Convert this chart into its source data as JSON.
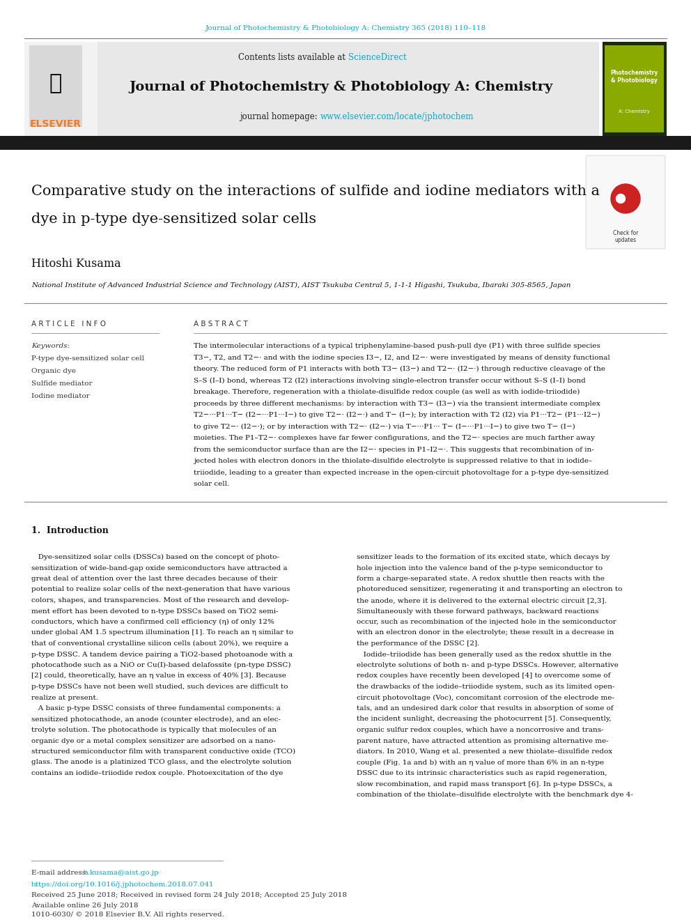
{
  "page_width": 9.92,
  "page_height": 13.23,
  "bg_color": "#ffffff",
  "top_journal_line": "Journal of Photochemistry & Photobiology A: Chemistry 365 (2018) 110–118",
  "top_journal_color": "#00aacc",
  "contents_line": "Contents lists available at ",
  "sciencedirect_text": "ScienceDirect",
  "sciencedirect_color": "#00aacc",
  "journal_title": "Journal of Photochemistry & Photobiology A: Chemistry",
  "journal_homepage_label": "journal homepage: ",
  "journal_homepage_url": "www.elsevier.com/locate/jphotochem",
  "journal_homepage_color": "#00aacc",
  "header_bg": "#e8e8e8",
  "black_bar_color": "#1a1a1a",
  "paper_title_line1": "Comparative study on the interactions of sulfide and iodine mediators with a",
  "paper_title_line2": "dye in p-type dye-sensitized solar cells",
  "author": "Hitoshi Kusama",
  "affiliation": "National Institute of Advanced Industrial Science and Technology (AIST), AIST Tsukuba Central 5, 1-1-1 Higashi, Tsukuba, Ibaraki 305-8565, Japan",
  "article_info_header": "ARTICLE INFO",
  "abstract_header": "ABSTRACT",
  "keywords_label": "Keywords:",
  "keywords": [
    "P-type dye-sensitized solar cell",
    "Organic dye",
    "Sulfide mediator",
    "Iodine mediator"
  ],
  "abstract_text": "The intermolecular interactions of a typical triphenylamine-based push-pull dye (P1) with three sulfide species T3−, T2, and T2−· and with the iodine species I3−, I2, and I2−· were investigated by means of density functional theory. The reduced form of P1 interacts with both T3− (I3−) and T2−· (I2−·) through reductive cleavage of the S–S (I–I) bond, whereas T2 (I2) interactions involving single-electron transfer occur without S–S (I–I) bond breakage. Therefore, regeneration with a thiolate-disulfide redox couple (as well as with iodide-triiodide) proceeds by three different mechanisms: by interaction with T3− (I3−) via the transient intermediate complex T2−···P1···T− (I2−···P1···I−) to give T2−· (I2−·) and T− (I−); by interaction with T2 (I2) via P1···T2− (P1···I2−) to give T2−· (I2−·); or by interaction with T2−· (I2−·) via T−···P1···T− (I−···P1···I−) to give two T− (I−) moieties. The P1–T2−· complexes have far fewer configurations, and the T2−· species are much farther away from the semiconductor surface than are the I2−· species in P1–I2−·. This suggests that recombination of injected holes with electron donors in the thiolate-disulfide electrolyte is suppressed relative to that in iodide–triiodide, leading to a greater than expected increase in the open-circuit photovoltage for a p-type dye-sensitized solar cell.",
  "section1_title": "1.  Introduction",
  "intro_col1_lines": [
    "   Dye-sensitized solar cells (DSSCs) based on the concept of photo-",
    "sensitization of wide-band-gap oxide semiconductors have attracted a",
    "great deal of attention over the last three decades because of their",
    "potential to realize solar cells of the next-generation that have various",
    "colors, shapes, and transparencies. Most of the research and develop-",
    "ment effort has been devoted to n-type DSSCs based on TiO2 semi-",
    "conductors, which have a confirmed cell efficiency (η) of only 12%",
    "under global AM 1.5 spectrum illumination [1]. To reach an η similar to",
    "that of conventional crystalline silicon cells (about 20%), we require a",
    "p-type DSSC. A tandem device pairing a TiO2-based photoanode with a",
    "photocathode such as a NiO or Cu(I)-based delafossite (pn-type DSSC)",
    "[2] could, theoretically, have an η value in excess of 40% [3]. Because",
    "p-type DSSCs have not been well studied, such devices are difficult to",
    "realize at present.",
    "   A basic p-type DSSC consists of three fundamental components: a",
    "sensitized photocathode, an anode (counter electrode), and an elec-",
    "trolyte solution. The photocathode is typically that molecules of an",
    "organic dye or a metal complex sensitizer are adsorbed on a nano-",
    "structured semiconductor film with transparent conductive oxide (TCO)",
    "glass. The anode is a platinized TCO glass, and the electrolyte solution",
    "contains an iodide–triiodide redox couple. Photoexcitation of the dye"
  ],
  "intro_col2_lines": [
    "sensitizer leads to the formation of its excited state, which decays by",
    "hole injection into the valence band of the p-type semiconductor to",
    "form a charge-separated state. A redox shuttle then reacts with the",
    "photoreduced sensitizer, regenerating it and transporting an electron to",
    "the anode, where it is delivered to the external electric circuit [2,3].",
    "Simultaneously with these forward pathways, backward reactions",
    "occur, such as recombination of the injected hole in the semiconductor",
    "with an electron donor in the electrolyte; these result in a decrease in",
    "the performance of the DSSC [2].",
    "   Iodide–triiodide has been generally used as the redox shuttle in the",
    "electrolyte solutions of both n- and p-type DSSCs. However, alternative",
    "redox couples have recently been developed [4] to overcome some of",
    "the drawbacks of the iodide–triiodide system, such as its limited open-",
    "circuit photovoltage (Voc), concomitant corrosion of the electrode me-",
    "tals, and an undesired dark color that results in absorption of some of",
    "the incident sunlight, decreasing the photocurrent [5]. Consequently,",
    "organic sulfur redox couples, which have a noncorrosive and trans-",
    "parent nature, have attracted attention as promising alternative me-",
    "diators. In 2010, Wang et al. presented a new thiolate–disulfide redox",
    "couple (Fig. 1a and b) with an η value of more than 6% in an n-type",
    "DSSC due to its intrinsic characteristics such as rapid regeneration,",
    "slow recombination, and rapid mass transport [6]. In p-type DSSCs, a",
    "combination of the thiolate–disulfide electrolyte with the benchmark dye 4-"
  ],
  "email_label": "E-mail address: ",
  "email": "h.kusama@aist.go.jp",
  "email_color": "#00aacc",
  "doi_text": "https://doi.org/10.1016/j.jphotochem.2018.07.041",
  "doi_color": "#00aacc",
  "received_text": "Received 25 June 2018; Received in revised form 24 July 2018; Accepted 25 July 2018",
  "available_text": "Available online 26 July 2018",
  "copyright_text": "1010-6030/ © 2018 Elsevier B.V. All rights reserved.",
  "elsevier_orange": "#f47920",
  "separator_color": "#999999"
}
